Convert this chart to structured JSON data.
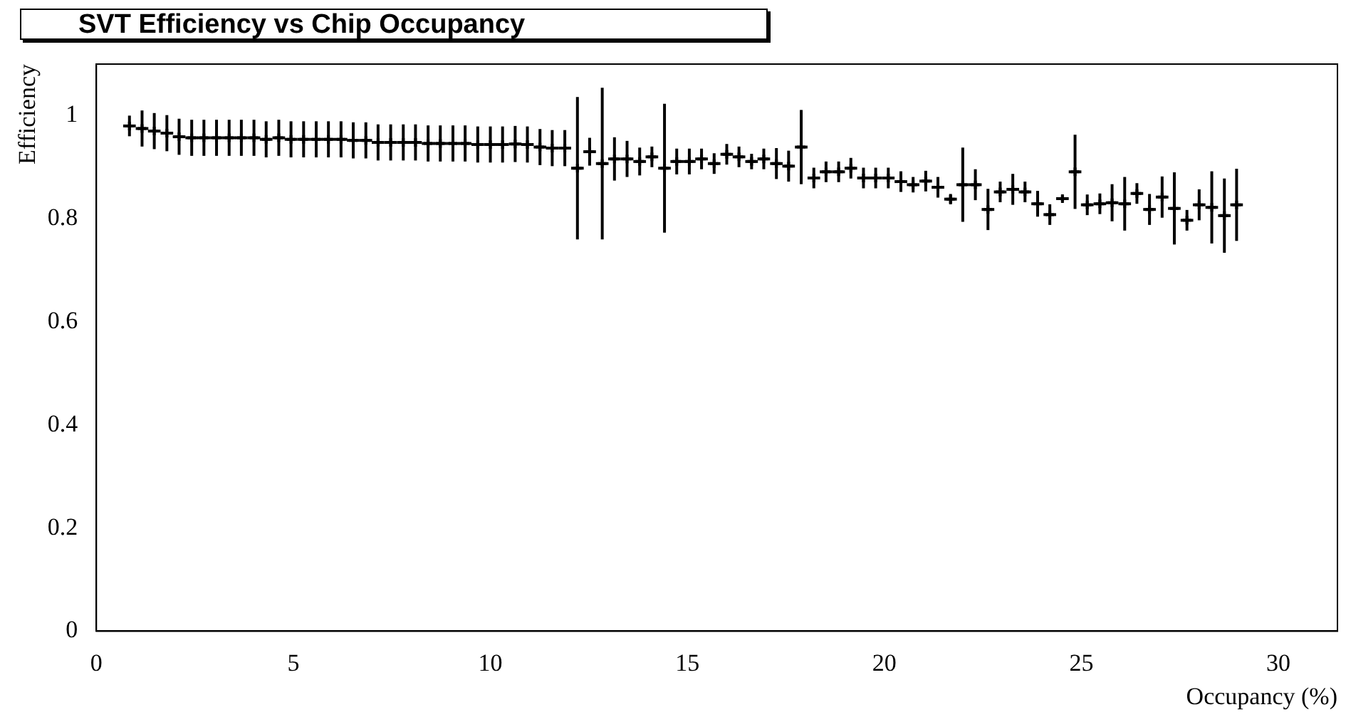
{
  "chart_data": {
    "type": "scatter",
    "title": "SVT Efficiency vs Chip Occupancy",
    "xlabel": "Occupancy (%)",
    "ylabel": "Efficiency",
    "marker": "cross",
    "grid": false,
    "legend": false,
    "color": "#000000",
    "xlim": [
      0,
      31.5
    ],
    "xticks": [
      0,
      5,
      10,
      15,
      20,
      25,
      30
    ],
    "ylim": [
      0,
      1.1
    ],
    "yticks": [
      0,
      0.2,
      0.4,
      0.6,
      0.8,
      1
    ],
    "x": [
      0.84,
      1.16,
      1.47,
      1.79,
      2.1,
      2.42,
      2.73,
      3.05,
      3.37,
      3.68,
      4.0,
      4.31,
      4.63,
      4.94,
      5.26,
      5.58,
      5.89,
      6.21,
      6.52,
      6.84,
      7.15,
      7.47,
      7.79,
      8.1,
      8.42,
      8.73,
      9.05,
      9.36,
      9.68,
      10.0,
      10.31,
      10.63,
      10.94,
      11.26,
      11.57,
      11.89,
      12.21,
      12.52,
      12.84,
      13.15,
      13.47,
      13.79,
      14.1,
      14.42,
      14.73,
      15.05,
      15.36,
      15.68,
      16.0,
      16.31,
      16.63,
      16.94,
      17.26,
      17.57,
      17.89,
      18.21,
      18.52,
      18.84,
      19.15,
      19.47,
      19.78,
      20.1,
      20.42,
      20.73,
      21.05,
      21.36,
      21.68,
      21.99,
      22.31,
      22.63,
      22.94,
      23.26,
      23.57,
      23.89,
      24.2,
      24.52,
      24.84,
      25.15,
      25.47,
      25.78,
      26.1,
      26.41,
      26.73,
      27.05,
      27.36,
      27.68,
      27.99,
      28.31,
      28.63,
      28.94
    ],
    "values": [
      0.98,
      0.975,
      0.97,
      0.966,
      0.959,
      0.957,
      0.957,
      0.957,
      0.957,
      0.957,
      0.957,
      0.954,
      0.957,
      0.954,
      0.954,
      0.954,
      0.954,
      0.954,
      0.952,
      0.952,
      0.948,
      0.948,
      0.948,
      0.948,
      0.946,
      0.946,
      0.946,
      0.946,
      0.944,
      0.944,
      0.944,
      0.945,
      0.944,
      0.939,
      0.937,
      0.937,
      0.898,
      0.93,
      0.907,
      0.916,
      0.916,
      0.911,
      0.92,
      0.898,
      0.911,
      0.911,
      0.916,
      0.907,
      0.925,
      0.92,
      0.911,
      0.916,
      0.907,
      0.902,
      0.939,
      0.879,
      0.891,
      0.891,
      0.898,
      0.879,
      0.879,
      0.879,
      0.872,
      0.866,
      0.873,
      0.861,
      0.838,
      0.866,
      0.866,
      0.818,
      0.852,
      0.857,
      0.852,
      0.829,
      0.808,
      0.839,
      0.891,
      0.827,
      0.829,
      0.831,
      0.829,
      0.849,
      0.818,
      0.842,
      0.82,
      0.797,
      0.827,
      0.822,
      0.806,
      0.827
    ],
    "errors": [
      0.02,
      0.035,
      0.035,
      0.035,
      0.035,
      0.035,
      0.035,
      0.035,
      0.035,
      0.035,
      0.035,
      0.035,
      0.035,
      0.035,
      0.035,
      0.035,
      0.035,
      0.035,
      0.035,
      0.035,
      0.035,
      0.035,
      0.035,
      0.035,
      0.035,
      0.035,
      0.035,
      0.035,
      0.035,
      0.035,
      0.035,
      0.035,
      0.035,
      0.035,
      0.035,
      0.035,
      0.138,
      0.027,
      0.147,
      0.042,
      0.035,
      0.027,
      0.02,
      0.125,
      0.025,
      0.025,
      0.02,
      0.02,
      0.02,
      0.02,
      0.015,
      0.02,
      0.03,
      0.03,
      0.072,
      0.02,
      0.02,
      0.02,
      0.02,
      0.02,
      0.02,
      0.02,
      0.02,
      0.015,
      0.02,
      0.02,
      0.01,
      0.072,
      0.03,
      0.04,
      0.02,
      0.03,
      0.02,
      0.025,
      0.02,
      0.005,
      0.072,
      0.02,
      0.02,
      0.036,
      0.052,
      0.02,
      0.03,
      0.04,
      0.07,
      0.02,
      0.03,
      0.07,
      0.072,
      0.07
    ],
    "xerrors": [
      0.16,
      0.16,
      0.16,
      0.16,
      0.16,
      0.16,
      0.16,
      0.16,
      0.16,
      0.16,
      0.16,
      0.16,
      0.16,
      0.16,
      0.16,
      0.16,
      0.16,
      0.16,
      0.16,
      0.16,
      0.16,
      0.16,
      0.16,
      0.16,
      0.16,
      0.16,
      0.16,
      0.16,
      0.16,
      0.16,
      0.16,
      0.16,
      0.16,
      0.16,
      0.16,
      0.16,
      0.16,
      0.16,
      0.16,
      0.16,
      0.16,
      0.16,
      0.16,
      0.16,
      0.16,
      0.16,
      0.16,
      0.16,
      0.16,
      0.16,
      0.16,
      0.16,
      0.16,
      0.16,
      0.16,
      0.16,
      0.16,
      0.16,
      0.16,
      0.16,
      0.16,
      0.16,
      0.16,
      0.16,
      0.16,
      0.16,
      0.16,
      0.16,
      0.16,
      0.16,
      0.16,
      0.16,
      0.16,
      0.16,
      0.16,
      0.16,
      0.16,
      0.16,
      0.16,
      0.16,
      0.16,
      0.16,
      0.16,
      0.16,
      0.16,
      0.16,
      0.16,
      0.16,
      0.16,
      0.16
    ]
  }
}
